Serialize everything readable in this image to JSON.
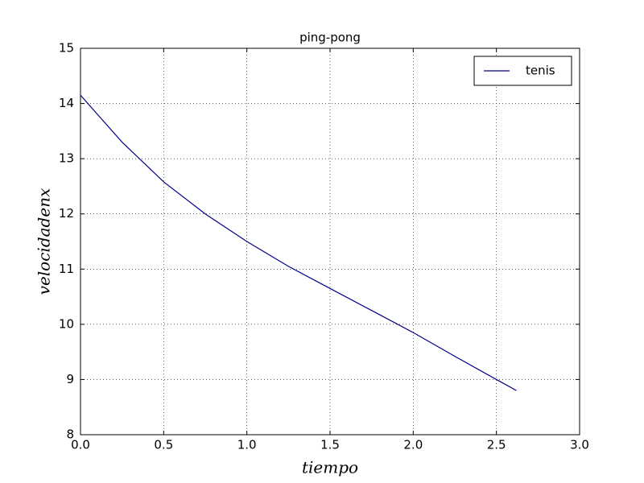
{
  "chart_data": {
    "type": "line",
    "title": "ping-pong",
    "x_label": "tiempo",
    "y_label": "velocidadenx",
    "x": [
      0,
      0.25,
      0.5,
      0.75,
      1.0,
      1.25,
      1.5,
      1.75,
      2.0,
      2.25,
      2.5,
      2.62
    ],
    "series": [
      {
        "name": "tenis",
        "color": "#00008b",
        "values": [
          14.15,
          13.3,
          12.58,
          12.0,
          11.5,
          11.05,
          10.65,
          10.25,
          9.85,
          9.42,
          9.0,
          8.8
        ]
      }
    ],
    "xlim": [
      0,
      3
    ],
    "ylim": [
      8,
      15
    ],
    "xticks": [
      {
        "value": 0,
        "label": "0.0"
      },
      {
        "value": 0.5,
        "label": "0.5"
      },
      {
        "value": 1,
        "label": "1.0"
      },
      {
        "value": 1.5,
        "label": "1.5"
      },
      {
        "value": 2,
        "label": "2.0"
      },
      {
        "value": 2.5,
        "label": "2.5"
      },
      {
        "value": 3,
        "label": "3.0"
      }
    ],
    "yticks": [
      8,
      9,
      10,
      11,
      12,
      13,
      14,
      15
    ],
    "grid": true,
    "legend": "upper right"
  }
}
